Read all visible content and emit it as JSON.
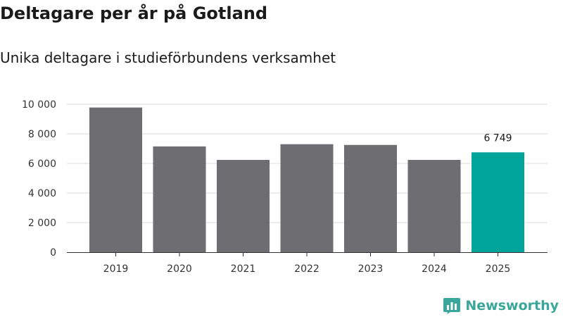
{
  "header": {
    "title": "Deltagare per år på Gotland",
    "subtitle": "Unika deltagare i studieförbundens verksamhet"
  },
  "brand": {
    "name": "Newsworthy",
    "color": "#3aa79a"
  },
  "colors": {
    "bar": "#6e6d72",
    "highlight": "#00a49a",
    "grid": "#d9d9d9",
    "axis": "#333333"
  },
  "chart_data": {
    "type": "bar",
    "title": "Deltagare per år på Gotland",
    "subtitle": "Unika deltagare i studieförbundens verksamhet",
    "categories": [
      "2019",
      "2020",
      "2021",
      "2022",
      "2023",
      "2024",
      "2025"
    ],
    "values": [
      9780,
      7150,
      6240,
      7300,
      7250,
      6240,
      6749
    ],
    "highlight_index": 6,
    "data_labels": [
      {
        "index": 6,
        "text": "6 749"
      }
    ],
    "xlabel": "",
    "ylabel": "",
    "ylim": [
      0,
      10000
    ],
    "yticks": [
      0,
      2000,
      4000,
      6000,
      8000,
      10000
    ],
    "ytick_labels": [
      "0",
      "2 000",
      "4 000",
      "6 000",
      "8 000",
      "10 000"
    ],
    "grid": true,
    "legend": "none"
  }
}
